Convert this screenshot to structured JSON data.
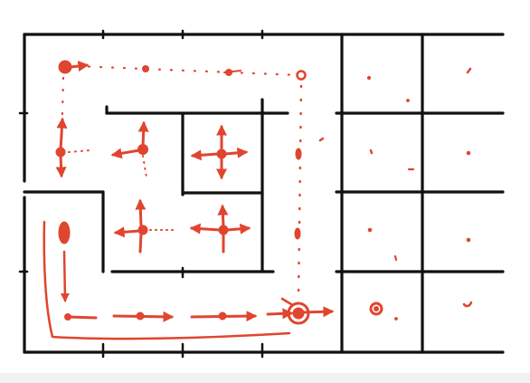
{
  "diagram": {
    "kind": "maze-grid",
    "grid": {
      "rows": 4,
      "cols": 6
    },
    "colors": {
      "wall": "#111111",
      "ink": "#e0452f",
      "background": "#ffffff",
      "bottom_strip": "#f2f2f2"
    },
    "icons": {
      "node": "filled-dot",
      "arrow": "arrow-head",
      "trail": "dotted-trail"
    }
  }
}
